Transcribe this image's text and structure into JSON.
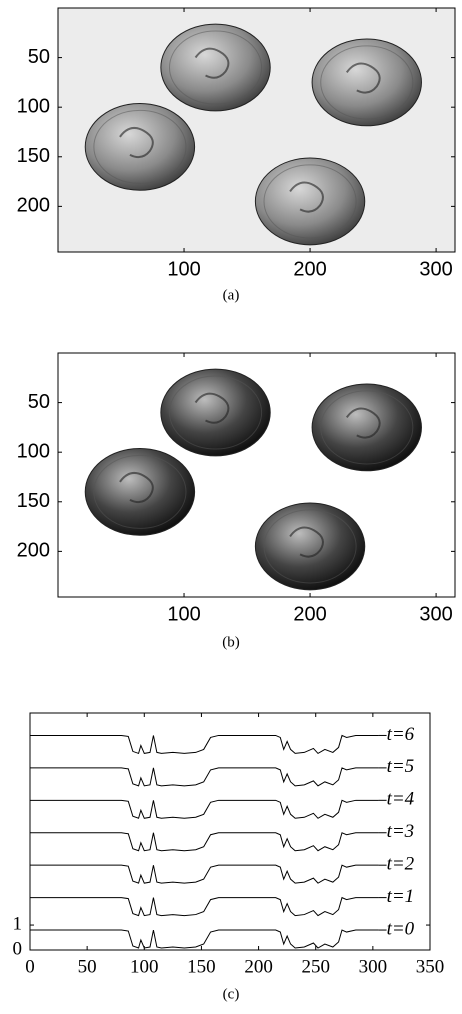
{
  "chart_data": [
    {
      "type": "image",
      "caption": "(a)",
      "xlim": [
        0,
        315
      ],
      "ylim": [
        0,
        246
      ],
      "xticks": [
        100,
        200,
        300
      ],
      "yticks": [
        50,
        100,
        150,
        200
      ]
    },
    {
      "type": "image",
      "caption": "(b)",
      "xlim": [
        0,
        315
      ],
      "ylim": [
        0,
        246
      ],
      "xticks": [
        100,
        200,
        300
      ],
      "yticks": [
        50,
        100,
        150,
        200
      ]
    },
    {
      "type": "line",
      "caption": "(c)",
      "xlim": [
        0,
        350
      ],
      "ylim": [
        0,
        9.5
      ],
      "xticks": [
        0,
        50,
        100,
        150,
        200,
        250,
        300,
        350
      ],
      "yticks": [
        0,
        1
      ],
      "x": [
        0,
        80,
        86,
        90,
        95,
        97,
        100,
        105,
        108,
        111,
        115,
        125,
        135,
        145,
        152,
        158,
        165,
        215,
        219,
        222,
        225,
        228,
        232,
        240,
        248,
        252,
        258,
        265,
        270,
        273,
        277,
        285,
        305
      ],
      "series": [
        {
          "name": "t=0",
          "color": "#000000",
          "values": [
            0.8,
            0.8,
            0.76,
            0.16,
            0.08,
            0.4,
            0.08,
            0.12,
            0.8,
            0.12,
            0.08,
            0.12,
            0.08,
            0.12,
            0.24,
            0.72,
            0.8,
            0.8,
            0.72,
            0.24,
            0.56,
            0.24,
            0.08,
            0.12,
            0.28,
            0.08,
            0.24,
            0.12,
            0.32,
            0.8,
            0.72,
            0.8,
            0.8
          ]
        },
        {
          "name": "t=1",
          "color": "#000000",
          "values": [
            2.1,
            2.1,
            2.06,
            1.46,
            1.38,
            1.7,
            1.38,
            1.42,
            2.1,
            1.42,
            1.38,
            1.42,
            1.38,
            1.42,
            1.54,
            2.02,
            2.1,
            2.1,
            2.02,
            1.54,
            1.86,
            1.54,
            1.38,
            1.42,
            1.58,
            1.38,
            1.54,
            1.42,
            1.62,
            2.1,
            2.02,
            2.1,
            2.1
          ]
        },
        {
          "name": "t=2",
          "color": "#000000",
          "values": [
            3.4,
            3.4,
            3.36,
            2.76,
            2.68,
            3.0,
            2.68,
            2.72,
            3.4,
            2.72,
            2.68,
            2.72,
            2.68,
            2.72,
            2.84,
            3.32,
            3.4,
            3.4,
            3.32,
            2.84,
            3.16,
            2.84,
            2.68,
            2.72,
            2.88,
            2.68,
            2.84,
            2.72,
            2.92,
            3.4,
            3.32,
            3.4,
            3.4
          ]
        },
        {
          "name": "t=3",
          "color": "#000000",
          "values": [
            4.7,
            4.7,
            4.66,
            4.06,
            3.98,
            4.3,
            3.98,
            4.02,
            4.7,
            4.02,
            3.98,
            4.02,
            3.98,
            4.02,
            4.14,
            4.62,
            4.7,
            4.7,
            4.62,
            4.14,
            4.46,
            4.14,
            3.98,
            4.02,
            4.18,
            3.98,
            4.14,
            4.02,
            4.22,
            4.7,
            4.62,
            4.7,
            4.7
          ]
        },
        {
          "name": "t=4",
          "color": "#000000",
          "values": [
            6,
            6,
            5.96,
            5.36,
            5.28,
            5.6,
            5.28,
            5.32,
            6,
            5.32,
            5.28,
            5.32,
            5.28,
            5.32,
            5.44,
            5.92,
            6,
            6,
            5.92,
            5.44,
            5.76,
            5.44,
            5.28,
            5.32,
            5.48,
            5.28,
            5.44,
            5.32,
            5.52,
            6,
            5.92,
            6,
            6
          ]
        },
        {
          "name": "t=5",
          "color": "#000000",
          "values": [
            7.3,
            7.3,
            7.26,
            6.66,
            6.58,
            6.9,
            6.58,
            6.62,
            7.3,
            6.62,
            6.58,
            6.62,
            6.58,
            6.62,
            6.74,
            7.22,
            7.3,
            7.3,
            7.22,
            6.74,
            7.06,
            6.74,
            6.58,
            6.62,
            6.78,
            6.58,
            6.74,
            6.62,
            6.82,
            7.3,
            7.22,
            7.3,
            7.3
          ]
        },
        {
          "name": "t=6",
          "color": "#000000",
          "values": [
            8.6,
            8.6,
            8.56,
            7.96,
            7.88,
            8.2,
            7.88,
            7.92,
            8.6,
            7.92,
            7.88,
            7.92,
            7.88,
            7.92,
            8.04,
            8.52,
            8.6,
            8.6,
            8.52,
            8.04,
            8.36,
            8.04,
            7.88,
            7.92,
            8.08,
            7.88,
            8.04,
            7.92,
            8.12,
            8.6,
            8.52,
            8.6,
            8.6
          ]
        }
      ]
    }
  ]
}
